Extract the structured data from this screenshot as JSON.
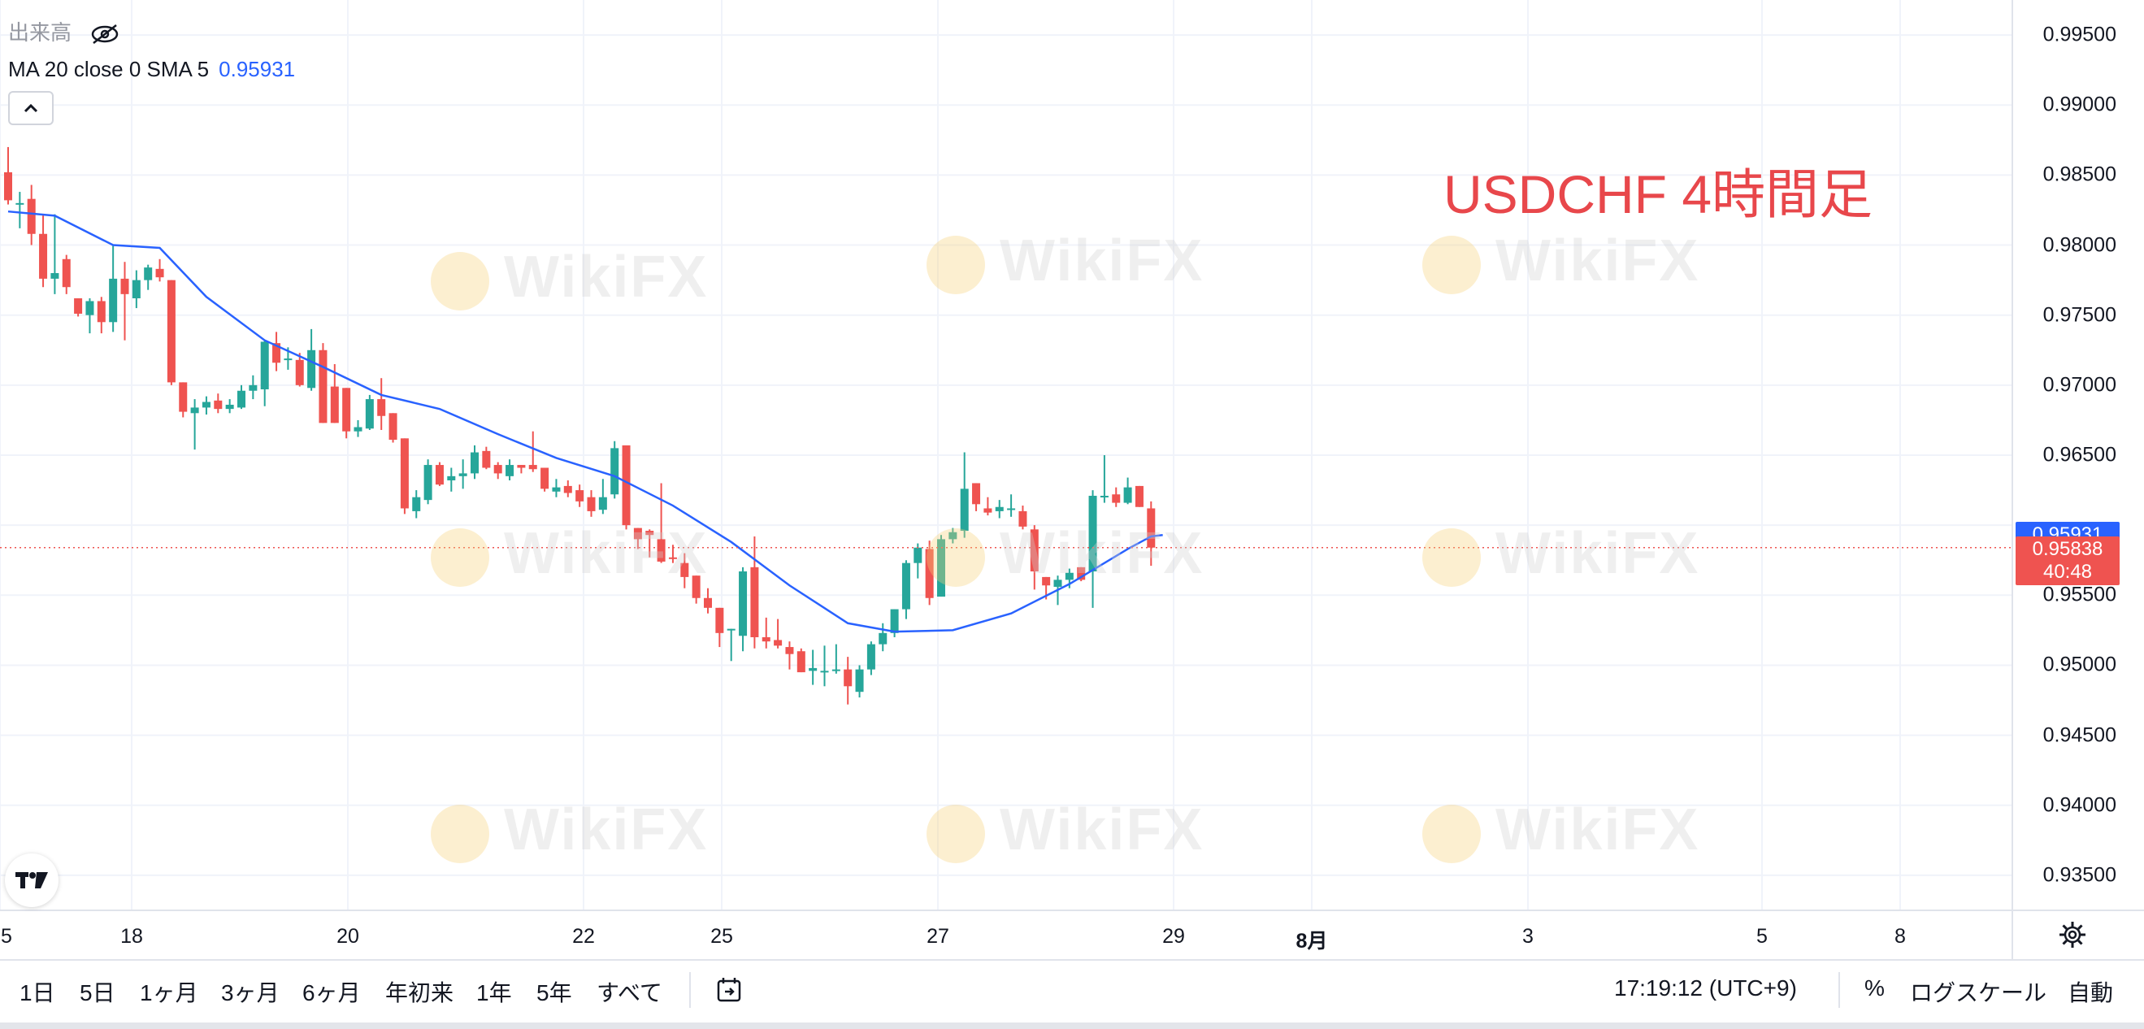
{
  "legend": {
    "volume_label": "出来高",
    "ma_label": "MA 20 close 0 SMA 5",
    "ma_value": "0.95931"
  },
  "title": "USDCHF 4時間足",
  "watermark_text": "WikiFX",
  "price_scale": {
    "labels": [
      "0.99500",
      "0.99000",
      "0.98500",
      "0.98000",
      "0.97500",
      "0.97000",
      "0.96500",
      "0.95500",
      "0.95000",
      "0.94500",
      "0.94000",
      "0.93500"
    ],
    "ma_tag": "0.95931",
    "last_price": "0.95838",
    "countdown": "40:48"
  },
  "time_axis": {
    "labels": [
      {
        "text": "5",
        "bold": false
      },
      {
        "text": "18",
        "bold": false
      },
      {
        "text": "20",
        "bold": false
      },
      {
        "text": "22",
        "bold": false
      },
      {
        "text": "25",
        "bold": false
      },
      {
        "text": "27",
        "bold": false
      },
      {
        "text": "29",
        "bold": false
      },
      {
        "text": "8月",
        "bold": true
      },
      {
        "text": "3",
        "bold": false
      },
      {
        "text": "5",
        "bold": false
      },
      {
        "text": "8",
        "bold": false
      }
    ]
  },
  "bottom_bar": {
    "ranges": [
      "1日",
      "5日",
      "1ヶ月",
      "3ヶ月",
      "6ヶ月",
      "年初来",
      "1年",
      "5年",
      "すべて"
    ],
    "clock": "17:19:12 (UTC+9)",
    "percent": "%",
    "log_scale": "ログスケール",
    "auto": "自動"
  },
  "colors": {
    "up": "#26a69a",
    "down": "#ef5350",
    "ma_line": "#2962ff",
    "title": "#e8474b",
    "grid": "#f0f3fa",
    "last_price_line": "#ef5350"
  },
  "chart_data": {
    "type": "candlestick",
    "symbol": "USDCHF",
    "timeframe": "4h",
    "ylim": [
      0.9325,
      0.9975
    ],
    "indicator": {
      "name": "MA 20 close 0 SMA 5",
      "last_value": 0.95931
    },
    "candles": [
      {
        "o": 0.9852,
        "h": 0.987,
        "l": 0.9829,
        "c": 0.9832
      },
      {
        "o": 0.9829,
        "h": 0.9838,
        "l": 0.9812,
        "c": 0.983
      },
      {
        "o": 0.9833,
        "h": 0.9843,
        "l": 0.98,
        "c": 0.9808
      },
      {
        "o": 0.9808,
        "h": 0.9822,
        "l": 0.977,
        "c": 0.9776
      },
      {
        "o": 0.9776,
        "h": 0.9822,
        "l": 0.9765,
        "c": 0.978
      },
      {
        "o": 0.979,
        "h": 0.9793,
        "l": 0.9765,
        "c": 0.977
      },
      {
        "o": 0.9762,
        "h": 0.9762,
        "l": 0.9749,
        "c": 0.9751
      },
      {
        "o": 0.975,
        "h": 0.9762,
        "l": 0.9737,
        "c": 0.976
      },
      {
        "o": 0.976,
        "h": 0.9763,
        "l": 0.9737,
        "c": 0.9745
      },
      {
        "o": 0.9745,
        "h": 0.98,
        "l": 0.9738,
        "c": 0.9776
      },
      {
        "o": 0.9776,
        "h": 0.9788,
        "l": 0.9732,
        "c": 0.9765
      },
      {
        "o": 0.9762,
        "h": 0.9782,
        "l": 0.9755,
        "c": 0.9775
      },
      {
        "o": 0.9775,
        "h": 0.9786,
        "l": 0.9768,
        "c": 0.9784
      },
      {
        "o": 0.9783,
        "h": 0.979,
        "l": 0.9774,
        "c": 0.9777
      },
      {
        "o": 0.9775,
        "h": 0.9775,
        "l": 0.97,
        "c": 0.9702
      },
      {
        "o": 0.9702,
        "h": 0.9702,
        "l": 0.9677,
        "c": 0.9681
      },
      {
        "o": 0.968,
        "h": 0.969,
        "l": 0.9654,
        "c": 0.9684
      },
      {
        "o": 0.9684,
        "h": 0.9692,
        "l": 0.9679,
        "c": 0.9688
      },
      {
        "o": 0.9689,
        "h": 0.9694,
        "l": 0.968,
        "c": 0.9683
      },
      {
        "o": 0.9683,
        "h": 0.969,
        "l": 0.968,
        "c": 0.9686
      },
      {
        "o": 0.9684,
        "h": 0.97,
        "l": 0.9683,
        "c": 0.9696
      },
      {
        "o": 0.9696,
        "h": 0.9707,
        "l": 0.969,
        "c": 0.97
      },
      {
        "o": 0.9697,
        "h": 0.9732,
        "l": 0.9685,
        "c": 0.9731
      },
      {
        "o": 0.973,
        "h": 0.9738,
        "l": 0.971,
        "c": 0.9716
      },
      {
        "o": 0.9718,
        "h": 0.9727,
        "l": 0.9711,
        "c": 0.9719
      },
      {
        "o": 0.9718,
        "h": 0.9723,
        "l": 0.9699,
        "c": 0.97
      },
      {
        "o": 0.9698,
        "h": 0.974,
        "l": 0.9696,
        "c": 0.9725
      },
      {
        "o": 0.9725,
        "h": 0.973,
        "l": 0.9673,
        "c": 0.9673
      },
      {
        "o": 0.9699,
        "h": 0.9715,
        "l": 0.9673,
        "c": 0.9673
      },
      {
        "o": 0.9698,
        "h": 0.9698,
        "l": 0.9662,
        "c": 0.9667
      },
      {
        "o": 0.9667,
        "h": 0.9675,
        "l": 0.9663,
        "c": 0.967
      },
      {
        "o": 0.9669,
        "h": 0.9693,
        "l": 0.9668,
        "c": 0.969
      },
      {
        "o": 0.969,
        "h": 0.9705,
        "l": 0.9668,
        "c": 0.9678
      },
      {
        "o": 0.968,
        "h": 0.968,
        "l": 0.9659,
        "c": 0.9661
      },
      {
        "o": 0.9662,
        "h": 0.9662,
        "l": 0.9608,
        "c": 0.9612
      },
      {
        "o": 0.961,
        "h": 0.9625,
        "l": 0.9605,
        "c": 0.962
      },
      {
        "o": 0.9618,
        "h": 0.9647,
        "l": 0.9615,
        "c": 0.9643
      },
      {
        "o": 0.9643,
        "h": 0.9645,
        "l": 0.9628,
        "c": 0.9629
      },
      {
        "o": 0.9632,
        "h": 0.9641,
        "l": 0.9624,
        "c": 0.9635
      },
      {
        "o": 0.9635,
        "h": 0.9647,
        "l": 0.9626,
        "c": 0.9637
      },
      {
        "o": 0.9637,
        "h": 0.9657,
        "l": 0.9633,
        "c": 0.9652
      },
      {
        "o": 0.9653,
        "h": 0.9656,
        "l": 0.964,
        "c": 0.9641
      },
      {
        "o": 0.9643,
        "h": 0.9645,
        "l": 0.9633,
        "c": 0.9637
      },
      {
        "o": 0.9635,
        "h": 0.9647,
        "l": 0.9632,
        "c": 0.9643
      },
      {
        "o": 0.9643,
        "h": 0.9643,
        "l": 0.9637,
        "c": 0.9641
      },
      {
        "o": 0.9643,
        "h": 0.9667,
        "l": 0.9638,
        "c": 0.964
      },
      {
        "o": 0.9641,
        "h": 0.9641,
        "l": 0.9624,
        "c": 0.9626
      },
      {
        "o": 0.9624,
        "h": 0.9633,
        "l": 0.962,
        "c": 0.9627
      },
      {
        "o": 0.9628,
        "h": 0.9632,
        "l": 0.962,
        "c": 0.9623
      },
      {
        "o": 0.9625,
        "h": 0.9629,
        "l": 0.9613,
        "c": 0.9617
      },
      {
        "o": 0.962,
        "h": 0.9625,
        "l": 0.9606,
        "c": 0.961
      },
      {
        "o": 0.9611,
        "h": 0.9633,
        "l": 0.9608,
        "c": 0.962
      },
      {
        "o": 0.9622,
        "h": 0.966,
        "l": 0.9619,
        "c": 0.9655
      },
      {
        "o": 0.9657,
        "h": 0.9657,
        "l": 0.9597,
        "c": 0.96
      },
      {
        "o": 0.9598,
        "h": 0.9598,
        "l": 0.9583,
        "c": 0.959
      },
      {
        "o": 0.9596,
        "h": 0.9597,
        "l": 0.9577,
        "c": 0.9593
      },
      {
        "o": 0.959,
        "h": 0.963,
        "l": 0.9573,
        "c": 0.9574
      },
      {
        "o": 0.9577,
        "h": 0.9586,
        "l": 0.9573,
        "c": 0.9576
      },
      {
        "o": 0.9573,
        "h": 0.958,
        "l": 0.9555,
        "c": 0.9563
      },
      {
        "o": 0.9564,
        "h": 0.9564,
        "l": 0.9544,
        "c": 0.9548
      },
      {
        "o": 0.9548,
        "h": 0.9555,
        "l": 0.9537,
        "c": 0.9541
      },
      {
        "o": 0.9541,
        "h": 0.9541,
        "l": 0.9513,
        "c": 0.9523
      },
      {
        "o": 0.9526,
        "h": 0.9526,
        "l": 0.9503,
        "c": 0.9526
      },
      {
        "o": 0.9521,
        "h": 0.957,
        "l": 0.951,
        "c": 0.9567
      },
      {
        "o": 0.957,
        "h": 0.9592,
        "l": 0.9512,
        "c": 0.952
      },
      {
        "o": 0.952,
        "h": 0.9534,
        "l": 0.9512,
        "c": 0.9517
      },
      {
        "o": 0.9518,
        "h": 0.9533,
        "l": 0.9512,
        "c": 0.9514
      },
      {
        "o": 0.9513,
        "h": 0.9517,
        "l": 0.9497,
        "c": 0.9508
      },
      {
        "o": 0.951,
        "h": 0.9512,
        "l": 0.9495,
        "c": 0.9495
      },
      {
        "o": 0.9496,
        "h": 0.9511,
        "l": 0.9486,
        "c": 0.9498
      },
      {
        "o": 0.9496,
        "h": 0.9514,
        "l": 0.9485,
        "c": 0.9496
      },
      {
        "o": 0.9496,
        "h": 0.9515,
        "l": 0.9494,
        "c": 0.9497
      },
      {
        "o": 0.9497,
        "h": 0.9506,
        "l": 0.9472,
        "c": 0.9485
      },
      {
        "o": 0.9481,
        "h": 0.95,
        "l": 0.9477,
        "c": 0.9497
      },
      {
        "o": 0.9497,
        "h": 0.9517,
        "l": 0.9493,
        "c": 0.9515
      },
      {
        "o": 0.9515,
        "h": 0.953,
        "l": 0.951,
        "c": 0.9523
      },
      {
        "o": 0.9523,
        "h": 0.954,
        "l": 0.952,
        "c": 0.954
      },
      {
        "o": 0.954,
        "h": 0.9575,
        "l": 0.9533,
        "c": 0.9573
      },
      {
        "o": 0.9573,
        "h": 0.9587,
        "l": 0.9562,
        "c": 0.9584
      },
      {
        "o": 0.9583,
        "h": 0.9589,
        "l": 0.9543,
        "c": 0.9548
      },
      {
        "o": 0.9549,
        "h": 0.9593,
        "l": 0.9549,
        "c": 0.959
      },
      {
        "o": 0.959,
        "h": 0.9598,
        "l": 0.9587,
        "c": 0.9595
      },
      {
        "o": 0.9596,
        "h": 0.9652,
        "l": 0.9591,
        "c": 0.9626
      },
      {
        "o": 0.963,
        "h": 0.963,
        "l": 0.961,
        "c": 0.9615
      },
      {
        "o": 0.9612,
        "h": 0.962,
        "l": 0.9607,
        "c": 0.9609
      },
      {
        "o": 0.961,
        "h": 0.9618,
        "l": 0.9605,
        "c": 0.9613
      },
      {
        "o": 0.9612,
        "h": 0.9622,
        "l": 0.9606,
        "c": 0.9612
      },
      {
        "o": 0.961,
        "h": 0.9614,
        "l": 0.9597,
        "c": 0.9599
      },
      {
        "o": 0.9597,
        "h": 0.96,
        "l": 0.9554,
        "c": 0.9567
      },
      {
        "o": 0.9563,
        "h": 0.9563,
        "l": 0.9547,
        "c": 0.9557
      },
      {
        "o": 0.9556,
        "h": 0.9564,
        "l": 0.9543,
        "c": 0.9561
      },
      {
        "o": 0.9561,
        "h": 0.9569,
        "l": 0.9555,
        "c": 0.9566
      },
      {
        "o": 0.957,
        "h": 0.957,
        "l": 0.956,
        "c": 0.9561
      },
      {
        "o": 0.9567,
        "h": 0.9625,
        "l": 0.9541,
        "c": 0.9621
      },
      {
        "o": 0.9621,
        "h": 0.965,
        "l": 0.9616,
        "c": 0.9621
      },
      {
        "o": 0.9622,
        "h": 0.9627,
        "l": 0.9613,
        "c": 0.9616
      },
      {
        "o": 0.9616,
        "h": 0.9634,
        "l": 0.9615,
        "c": 0.9627
      },
      {
        "o": 0.9628,
        "h": 0.9628,
        "l": 0.9613,
        "c": 0.9613
      },
      {
        "o": 0.9612,
        "h": 0.9617,
        "l": 0.9571,
        "c": 0.9584
      }
    ],
    "ma_line": [
      {
        "i": 0,
        "v": 0.9824
      },
      {
        "i": 4,
        "v": 0.9821
      },
      {
        "i": 9,
        "v": 0.98
      },
      {
        "i": 13,
        "v": 0.9798
      },
      {
        "i": 17,
        "v": 0.9763
      },
      {
        "i": 22,
        "v": 0.9732
      },
      {
        "i": 27,
        "v": 0.9713
      },
      {
        "i": 32,
        "v": 0.9693
      },
      {
        "i": 37,
        "v": 0.9683
      },
      {
        "i": 42,
        "v": 0.9665
      },
      {
        "i": 47,
        "v": 0.9648
      },
      {
        "i": 52,
        "v": 0.9635
      },
      {
        "i": 57,
        "v": 0.9614
      },
      {
        "i": 62,
        "v": 0.9588
      },
      {
        "i": 67,
        "v": 0.9557
      },
      {
        "i": 72,
        "v": 0.953
      },
      {
        "i": 76,
        "v": 0.9524
      },
      {
        "i": 81,
        "v": 0.9525
      },
      {
        "i": 86,
        "v": 0.9537
      },
      {
        "i": 91,
        "v": 0.9558
      },
      {
        "i": 96,
        "v": 0.9583
      },
      {
        "i": 98,
        "v": 0.9592
      },
      {
        "i": 99,
        "v": 0.9593
      }
    ]
  }
}
